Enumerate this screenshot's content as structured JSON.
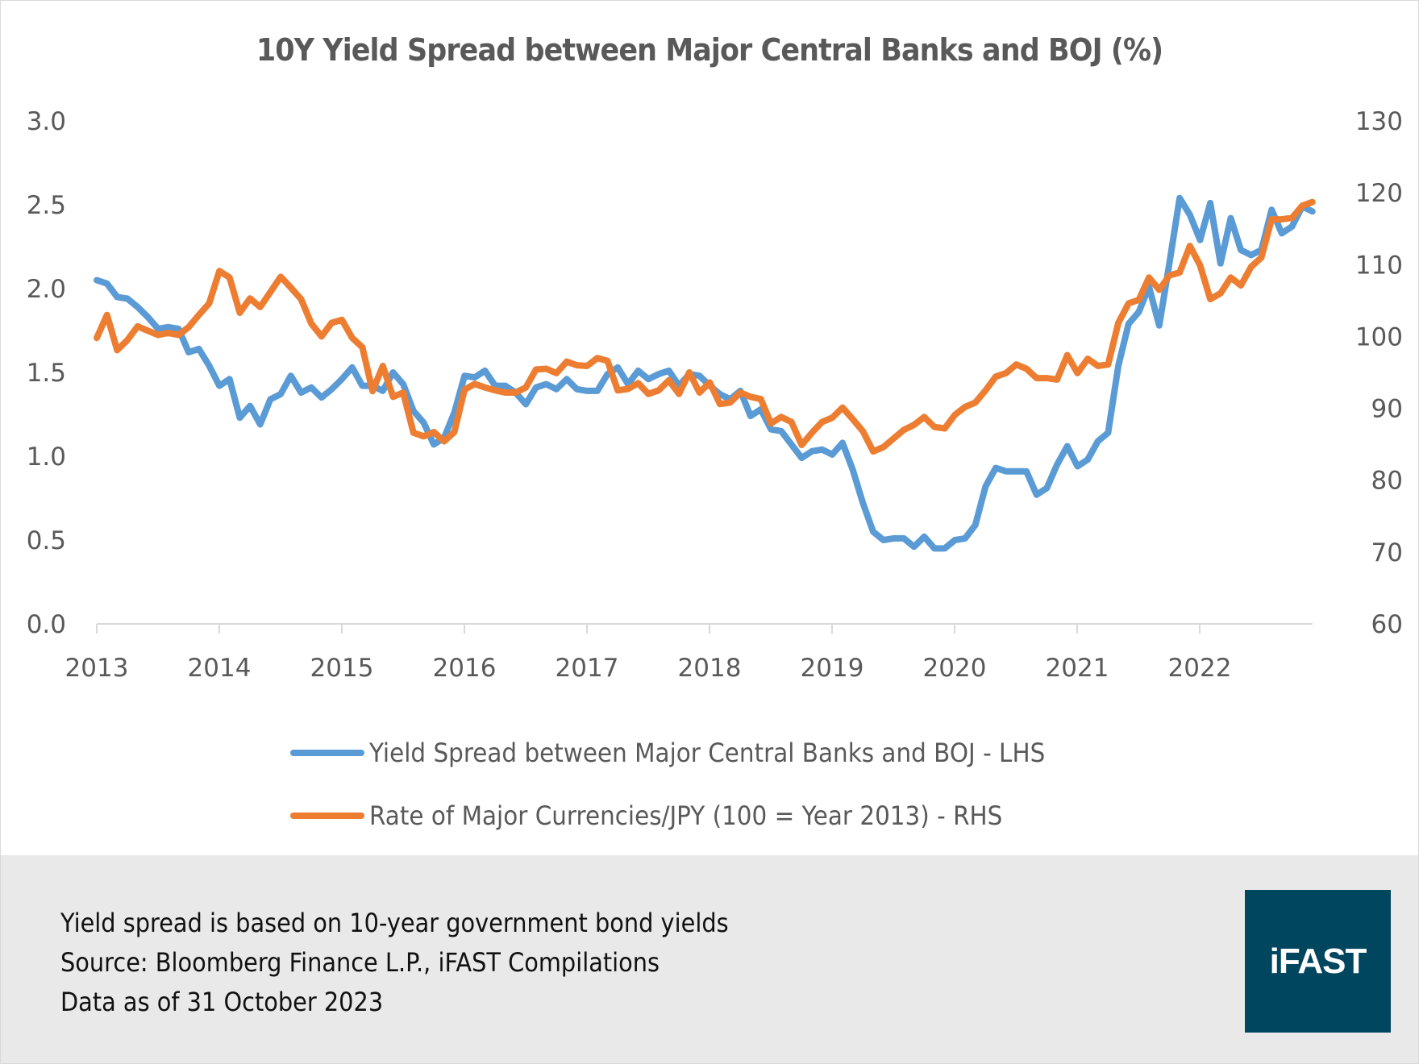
{
  "chart_data": {
    "type": "line",
    "title": "10Y Yield Spread between Major Central Banks and BOJ (%)",
    "xlabel": "",
    "ylabel_left": "",
    "ylabel_right": "",
    "x_ticks": [
      "2013",
      "2014",
      "2015",
      "2016",
      "2017",
      "2018",
      "2019",
      "2020",
      "2021",
      "2022"
    ],
    "x_range": [
      2013.0,
      2022.92
    ],
    "y_left": {
      "range": [
        0,
        3.0
      ],
      "ticks": [
        "0.0",
        "0.5",
        "1.0",
        "1.5",
        "2.0",
        "2.5",
        "3.0"
      ]
    },
    "y_right": {
      "range": [
        60,
        130
      ],
      "ticks": [
        "60",
        "70",
        "80",
        "90",
        "100",
        "110",
        "120",
        "130"
      ]
    },
    "grid": false,
    "legend_position": "bottom",
    "series": [
      {
        "name": "Yield Spread between Major Central Banks and BOJ - LHS",
        "axis": "left",
        "color": "#5b9bd5",
        "values": [
          2.05,
          2.03,
          1.95,
          1.94,
          1.89,
          1.83,
          1.76,
          1.77,
          1.76,
          1.62,
          1.64,
          1.54,
          1.42,
          1.46,
          1.23,
          1.3,
          1.19,
          1.34,
          1.37,
          1.48,
          1.38,
          1.41,
          1.35,
          1.4,
          1.46,
          1.53,
          1.42,
          1.42,
          1.39,
          1.5,
          1.43,
          1.27,
          1.2,
          1.07,
          1.11,
          1.26,
          1.48,
          1.47,
          1.51,
          1.42,
          1.42,
          1.38,
          1.31,
          1.41,
          1.43,
          1.4,
          1.46,
          1.4,
          1.39,
          1.39,
          1.49,
          1.53,
          1.43,
          1.51,
          1.46,
          1.49,
          1.51,
          1.42,
          1.49,
          1.48,
          1.42,
          1.37,
          1.34,
          1.39,
          1.24,
          1.28,
          1.16,
          1.15,
          1.07,
          0.99,
          1.03,
          1.04,
          1.01,
          1.08,
          0.92,
          0.72,
          0.55,
          0.5,
          0.51,
          0.51,
          0.46,
          0.52,
          0.45,
          0.45,
          0.5,
          0.51,
          0.59,
          0.82,
          0.93,
          0.91,
          0.91,
          0.91,
          0.77,
          0.81,
          0.95,
          1.06,
          0.94,
          0.98,
          1.09,
          1.14,
          1.54,
          1.79,
          1.86,
          2.01,
          1.78,
          2.15,
          2.54,
          2.44,
          2.29,
          2.51,
          2.15,
          2.42,
          2.23,
          2.2,
          2.23,
          2.47,
          2.33,
          2.37,
          2.49,
          2.46
        ]
      },
      {
        "name": "Rate of Major Currencies/JPY (100 = Year 2013) - RHS",
        "axis": "right",
        "color": "#ed7d31",
        "values": [
          99.8,
          103.0,
          98.1,
          99.5,
          101.4,
          100.8,
          100.2,
          100.5,
          100.2,
          101.3,
          103.0,
          104.6,
          109.1,
          108.2,
          103.3,
          105.3,
          104.1,
          106.2,
          108.3,
          106.8,
          105.2,
          101.8,
          100.0,
          101.9,
          102.3,
          99.8,
          98.5,
          92.4,
          95.9,
          91.6,
          92.2,
          86.6,
          86.1,
          86.7,
          85.4,
          86.7,
          92.6,
          93.4,
          92.9,
          92.5,
          92.2,
          92.2,
          92.9,
          95.4,
          95.5,
          94.9,
          96.5,
          96.0,
          95.9,
          97.0,
          96.6,
          92.5,
          92.7,
          93.5,
          92.0,
          92.5,
          93.9,
          92.0,
          95.0,
          92.2,
          93.6,
          90.6,
          90.8,
          92.2,
          91.6,
          91.3,
          87.9,
          88.8,
          88.1,
          84.9,
          86.6,
          88.1,
          88.7,
          90.1,
          88.5,
          86.8,
          84.0,
          84.6,
          85.8,
          87.0,
          87.7,
          88.8,
          87.4,
          87.2,
          89.1,
          90.2,
          90.8,
          92.5,
          94.4,
          94.9,
          96.1,
          95.5,
          94.2,
          94.2,
          94.0,
          97.4,
          94.9,
          96.9,
          95.9,
          96.1,
          101.9,
          104.6,
          105.1,
          108.2,
          106.5,
          108.5,
          108.9,
          112.6,
          109.9,
          105.2,
          106.0,
          108.2,
          107.1,
          109.7,
          111.0,
          116.3,
          116.3,
          116.5,
          118.2,
          118.7
        ]
      }
    ]
  },
  "legend": {
    "items": [
      {
        "label": "Yield Spread between Major Central Banks and BOJ - LHS",
        "color": "#5b9bd5"
      },
      {
        "label": "Rate of Major Currencies/JPY (100 = Year 2013) - RHS",
        "color": "#ed7d31"
      }
    ]
  },
  "footer": {
    "notes": [
      "Yield spread is based on 10-year government bond yields",
      "Source: Bloomberg Finance L.P., iFAST Compilations",
      "Data as of 31 October 2023"
    ],
    "logo_text": "iFAST",
    "logo_color": "#00465f"
  }
}
